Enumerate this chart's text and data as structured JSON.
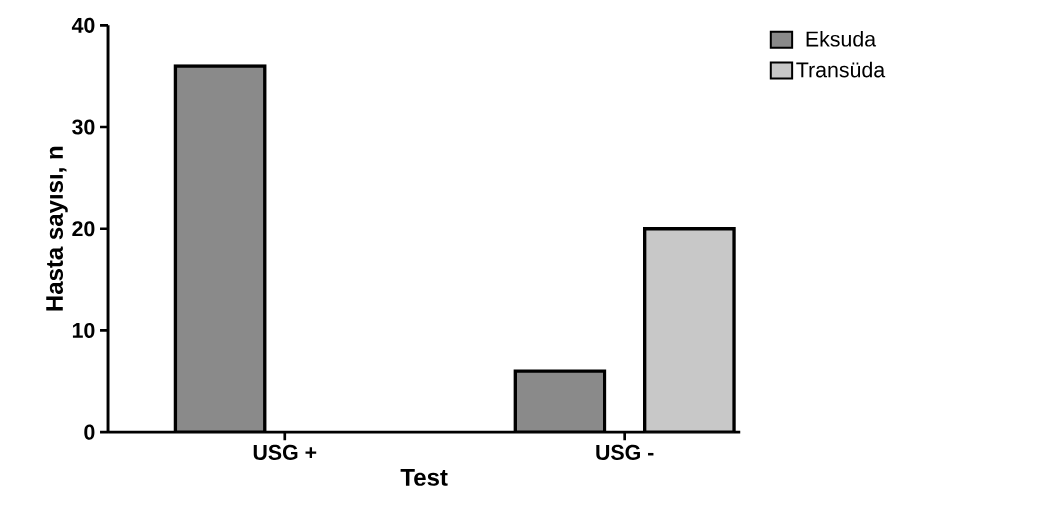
{
  "chart_data": {
    "type": "bar",
    "xlabel": "Test",
    "ylabel": "Hasta sayısı, n",
    "categories": [
      "USG +",
      "USG -"
    ],
    "series": [
      {
        "name": "Eksuda",
        "color": "#8a8a8a",
        "values": [
          36,
          6
        ]
      },
      {
        "name": "Transüda",
        "color": "#c8c8c8",
        "values": [
          null,
          20
        ]
      }
    ],
    "ylim": [
      0,
      40
    ],
    "yticks": [
      0,
      10,
      20,
      30,
      40
    ],
    "grid": false,
    "legend": "top right"
  }
}
